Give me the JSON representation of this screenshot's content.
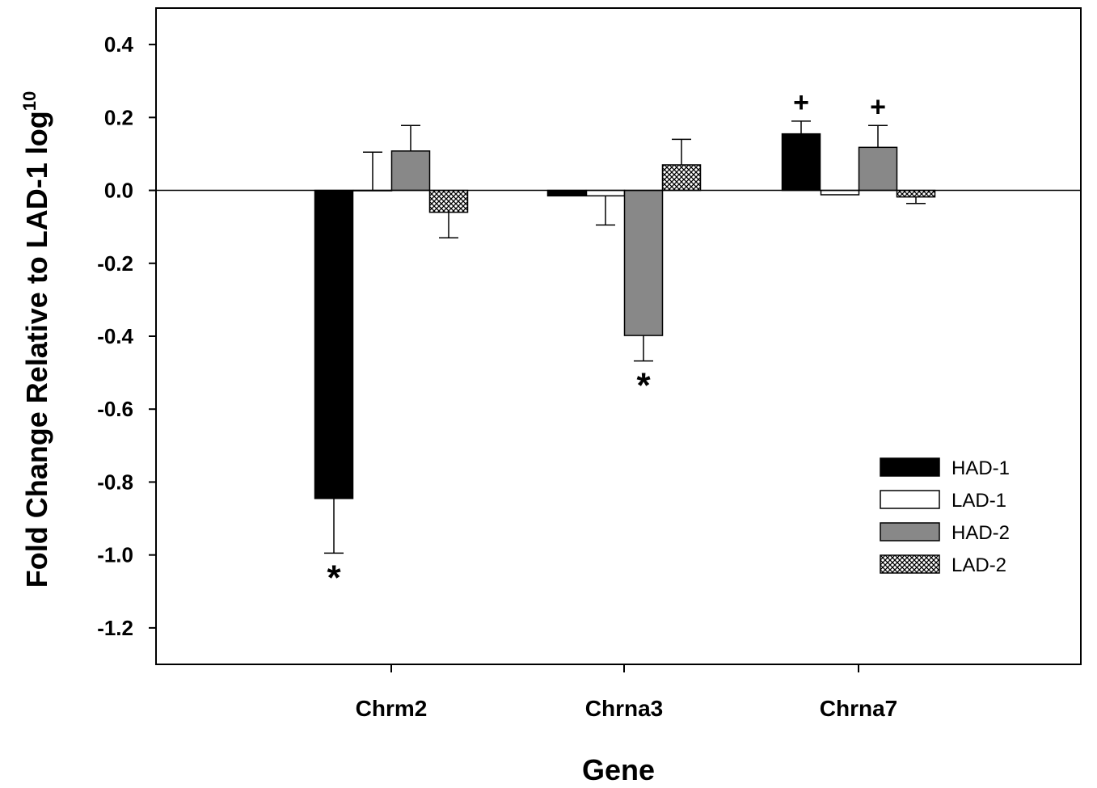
{
  "chart_data": {
    "type": "bar",
    "title": "",
    "xlabel": "Gene",
    "ylabel": "Fold Change Relative to LAD-1 log",
    "ylabel_superscript": "10",
    "ylim": [
      -1.3,
      0.5
    ],
    "yticks": [
      0.4,
      0.2,
      0.0,
      -0.2,
      -0.4,
      -0.6,
      -0.8,
      -1.0,
      -1.2
    ],
    "ytick_labels": [
      "0.4",
      "0.2",
      "0.0",
      "-0.2",
      "-0.4",
      "-0.6",
      "-0.8",
      "-1.0",
      "-1.2"
    ],
    "categories": [
      "Chrm2",
      "Chrna3",
      "Chrna7"
    ],
    "legend_position": "lower-right",
    "grid": false,
    "series": [
      {
        "name": "HAD-1",
        "fill": "#000000",
        "pattern": "solid",
        "values": [
          -0.845,
          -0.015,
          0.155
        ],
        "errors": [
          0.15,
          0.0,
          0.035
        ]
      },
      {
        "name": "LAD-1",
        "fill": "#ffffff",
        "pattern": "solid",
        "values": [
          0.0,
          -0.015,
          -0.012
        ],
        "errors": [
          0.105,
          0.08,
          0.0
        ]
      },
      {
        "name": "HAD-2",
        "fill": "#888888",
        "pattern": "solid",
        "values": [
          0.108,
          -0.398,
          0.118
        ],
        "errors": [
          0.07,
          0.07,
          0.06
        ]
      },
      {
        "name": "LAD-2",
        "fill": "#cccccc",
        "pattern": "crosshatch",
        "values": [
          -0.06,
          0.07,
          -0.018
        ],
        "errors": [
          0.07,
          0.07,
          0.018
        ]
      }
    ],
    "annotations": [
      {
        "category": "Chrm2",
        "series": "HAD-1",
        "text": "*",
        "placement": "below"
      },
      {
        "category": "Chrna3",
        "series": "HAD-2",
        "text": "*",
        "placement": "below"
      },
      {
        "category": "Chrna7",
        "series": "HAD-1",
        "text": "+",
        "placement": "above"
      },
      {
        "category": "Chrna7",
        "series": "HAD-2",
        "text": "+",
        "placement": "above"
      }
    ]
  }
}
